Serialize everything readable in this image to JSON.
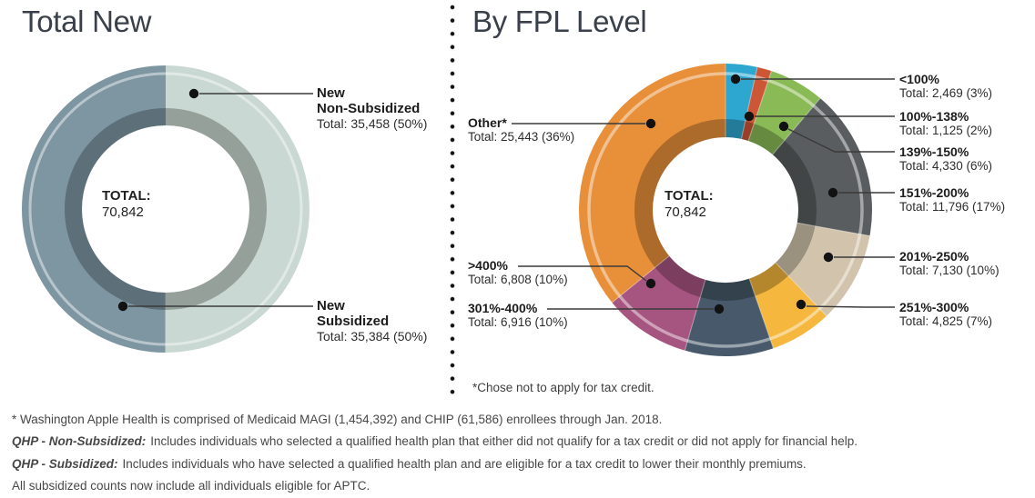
{
  "page": {
    "background": "#ffffff",
    "divider_style": "vertical dotted line"
  },
  "chart_data": [
    {
      "type": "donut",
      "title": "Total New",
      "total": 70842,
      "center": {
        "label": "TOTAL:",
        "value": "70,842"
      },
      "legend_position": "right-callouts",
      "slices": [
        {
          "label": "New Non-Subsidized",
          "label_line1": "New",
          "label_line2": "Non-Subsidized",
          "value": 35458,
          "pct": "50%",
          "total_text": "Total: 35,458 (50%)",
          "color": "#c9d8d2"
        },
        {
          "label": "New Subsidized",
          "label_line1": "New",
          "label_line2": "Subsidized",
          "value": 35384,
          "pct": "50%",
          "total_text": "Total: 35,384 (50%)",
          "color": "#7e96a2"
        }
      ]
    },
    {
      "type": "donut",
      "title": "By FPL Level",
      "total": 70842,
      "center": {
        "label": "TOTAL:",
        "value": "70,842"
      },
      "legend_position": "both-side-callouts",
      "footnote": "*Chose not to apply for tax credit.",
      "slices": [
        {
          "label": "<100%",
          "value": 2469,
          "pct": "3%",
          "total_text": "Total: 2,469 (3%)",
          "color": "#2da7cf"
        },
        {
          "label": "100%-138%",
          "value": 1125,
          "pct": "2%",
          "total_text": "Total: 1,125 (2%)",
          "color": "#cd5636"
        },
        {
          "label": "139%-150%",
          "value": 4330,
          "pct": "6%",
          "total_text": "Total: 4,330 (6%)",
          "color": "#8aba55"
        },
        {
          "label": "151%-200%",
          "value": 11796,
          "pct": "17%",
          "total_text": "Total: 11,796 (17%)",
          "color": "#595d5f"
        },
        {
          "label": "201%-250%",
          "value": 7130,
          "pct": "10%",
          "total_text": "Total: 7,130 (10%)",
          "color": "#d2c4ac"
        },
        {
          "label": "251%-300%",
          "value": 4825,
          "pct": "7%",
          "total_text": "Total: 4,825 (7%)",
          "color": "#f5b73d"
        },
        {
          "label": "301%-400%",
          "value": 6916,
          "pct": "10%",
          "total_text": "Total: 6,916 (10%)",
          "color": "#47596a"
        },
        {
          "label": ">400%",
          "value": 6808,
          "pct": "10%",
          "total_text": "Total: 6,808 (10%)",
          "color": "#a65480"
        },
        {
          "label": "Other*",
          "value": 25443,
          "pct": "36%",
          "total_text": "Total: 25,443 (36%)",
          "color": "#e88f3a"
        }
      ]
    }
  ],
  "footer": {
    "lines": [
      {
        "prefix": "",
        "text": "* Washington Apple Health is comprised of Medicaid MAGI (1,454,392) and CHIP (61,586) enrollees through Jan. 2018."
      },
      {
        "prefix": "QHP - Non-Subsidized:",
        "text": "Includes individuals who selected a qualified health plan that either did not qualify for a tax credit or did not apply for financial help."
      },
      {
        "prefix": "QHP - Subsidized:",
        "text": "Includes individuals who have selected a qualified health plan and are eligible for a tax credit to lower their monthly premiums."
      },
      {
        "prefix": "",
        "text": "All subsidized counts now include all individuals eligible for APTC."
      }
    ]
  }
}
